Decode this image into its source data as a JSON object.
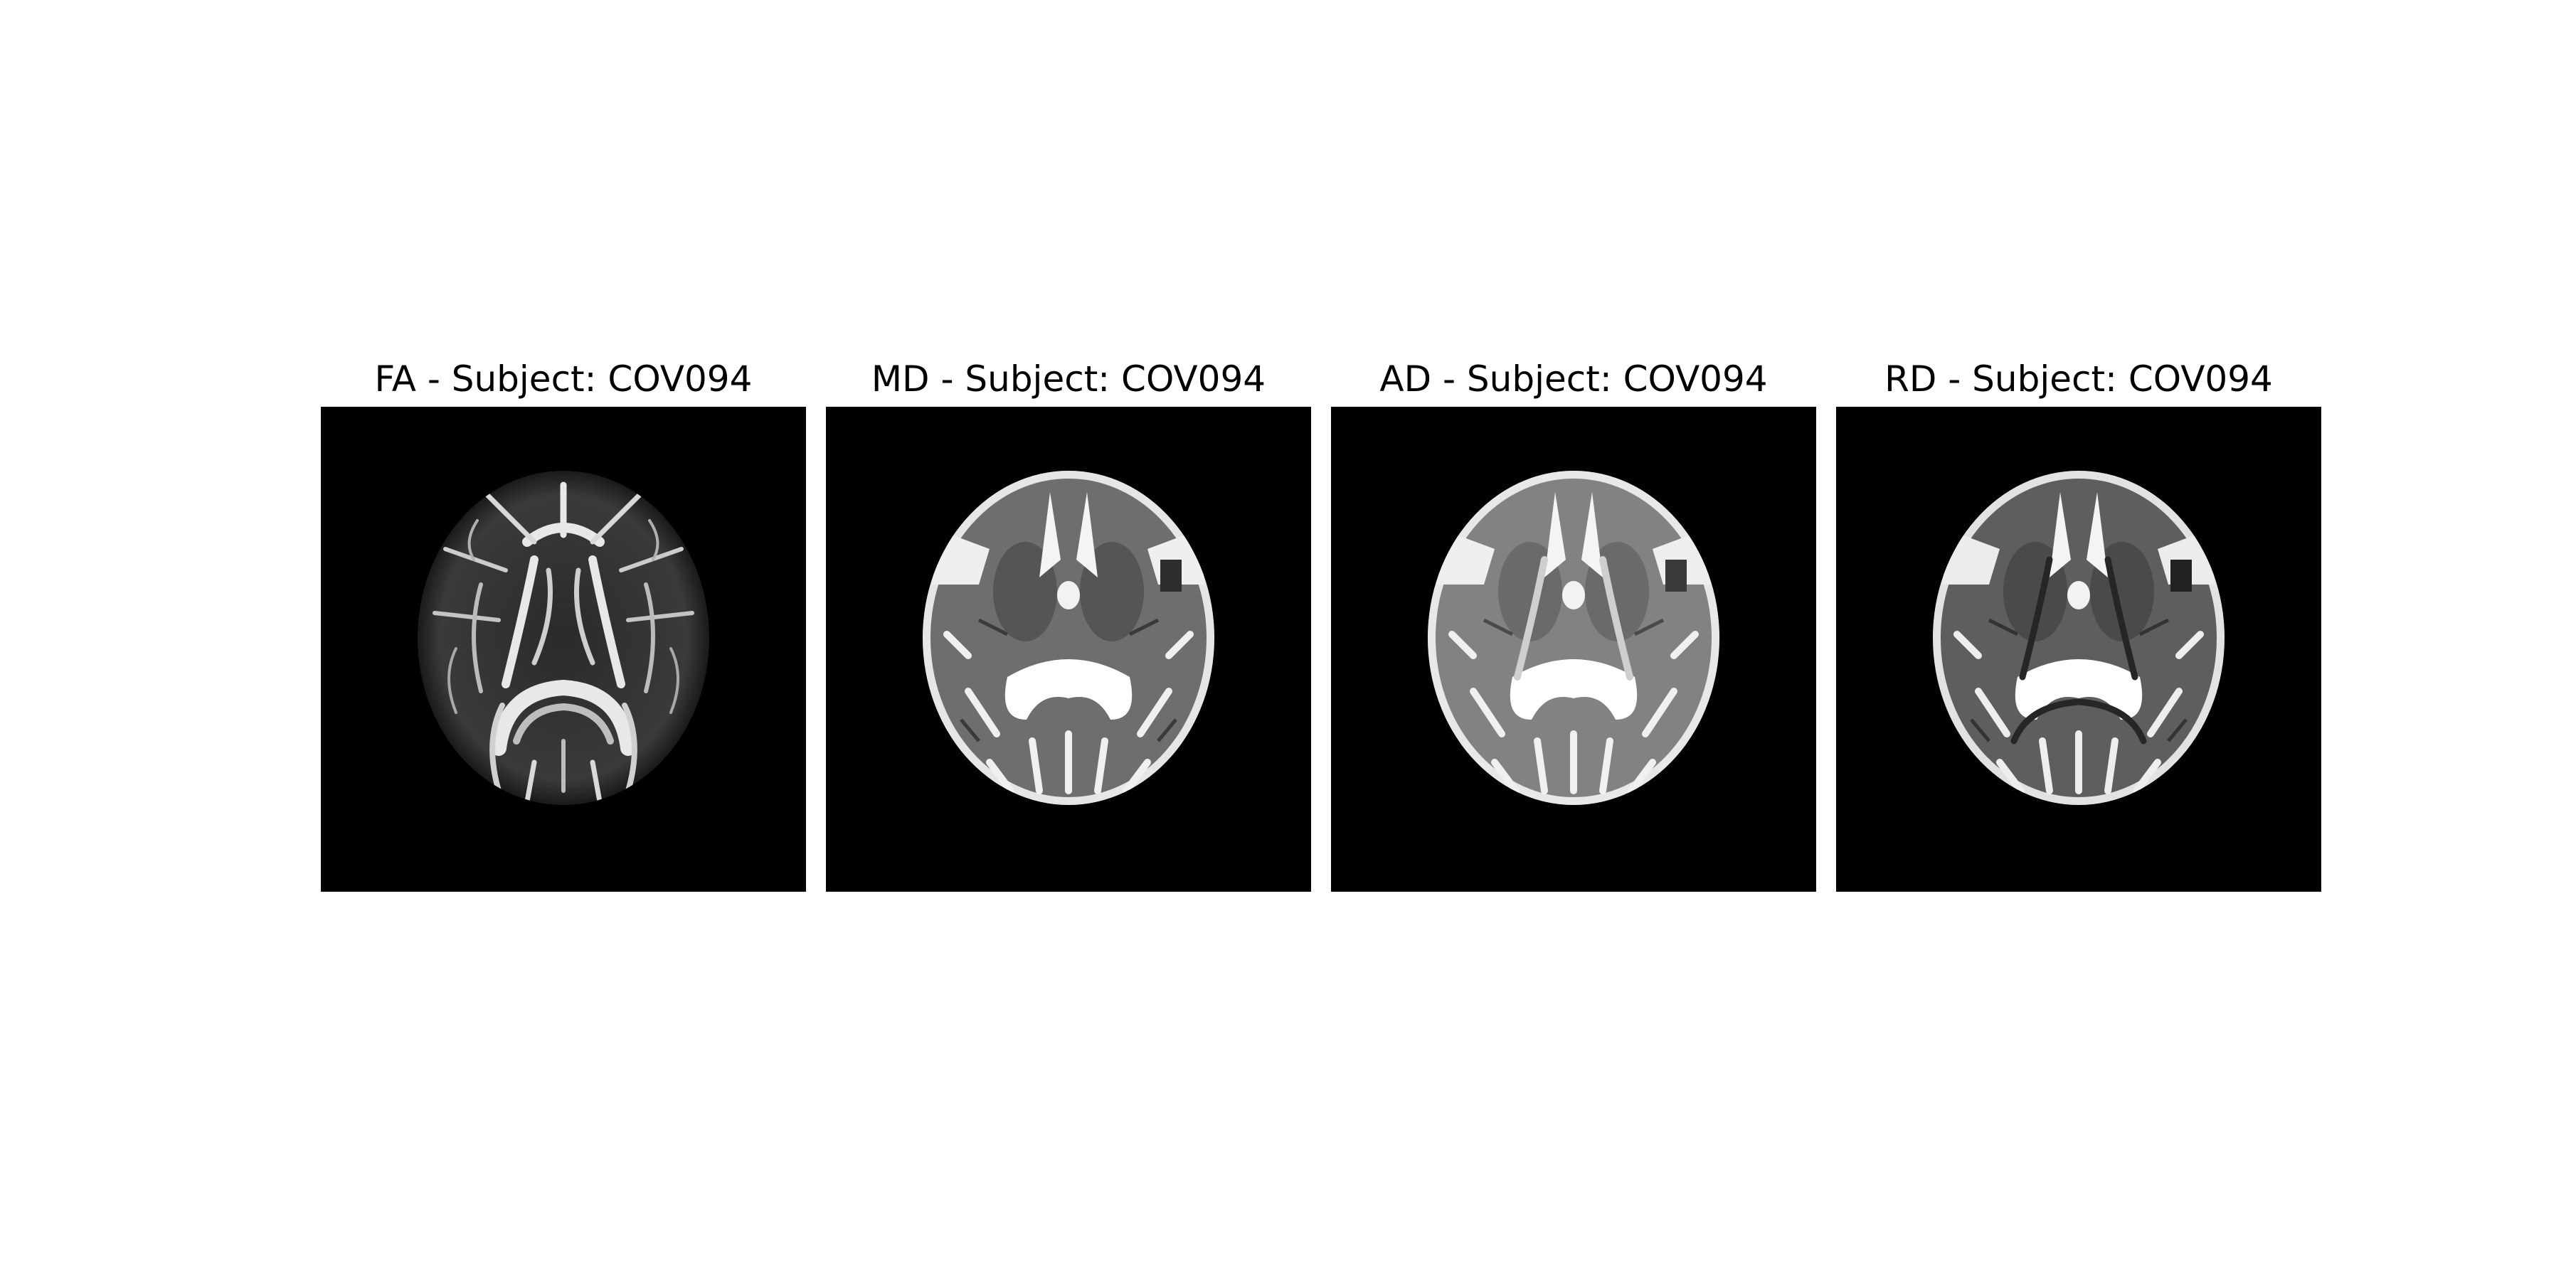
{
  "figure": {
    "panels": [
      {
        "id": "fa",
        "title": "FA - Subject: COV094",
        "map": "fractional-anisotropy",
        "contrast": "white-matter-bright"
      },
      {
        "id": "md",
        "title": "MD - Subject: COV094",
        "map": "mean-diffusivity",
        "contrast": "csf-bright"
      },
      {
        "id": "ad",
        "title": "AD - Subject: COV094",
        "map": "axial-diffusivity",
        "contrast": "csf-bright"
      },
      {
        "id": "rd",
        "title": "RD - Subject: COV094",
        "map": "radial-diffusivity",
        "contrast": "csf-bright"
      }
    ]
  }
}
